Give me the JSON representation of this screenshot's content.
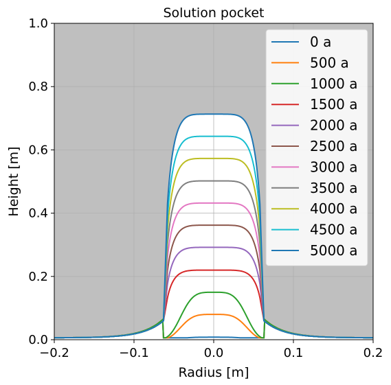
{
  "chart_data": {
    "type": "area",
    "title": "Solution pocket",
    "xlabel": "Radius [m]",
    "ylabel": "Height [m]",
    "xlim": [
      -0.2,
      0.2
    ],
    "ylim": [
      0.0,
      1.0
    ],
    "xticks": [
      -0.2,
      -0.1,
      0.0,
      0.1,
      0.2
    ],
    "xtick_labels": [
      "−0.2",
      "−0.1",
      "0.0",
      "0.1",
      "0.2"
    ],
    "yticks": [
      0.0,
      0.2,
      0.4,
      0.6,
      0.8,
      1.0
    ],
    "ytick_labels": [
      "0.0",
      "0.2",
      "0.4",
      "0.6",
      "0.8",
      "1.0"
    ],
    "grid": true,
    "background_color": "#bfbfbf",
    "pocket_fill_color": "#ffffff",
    "legend_position": "top-right",
    "series": [
      {
        "name": "0 a",
        "color": "#1f77b4",
        "peak": 0.008
      },
      {
        "name": "500 a",
        "color": "#ff7f0e",
        "peak": 0.08
      },
      {
        "name": "1000 a",
        "color": "#2ca02c",
        "peak": 0.15
      },
      {
        "name": "1500 a",
        "color": "#d62728",
        "peak": 0.22
      },
      {
        "name": "2000 a",
        "color": "#9467bd",
        "peak": 0.292
      },
      {
        "name": "2500 a",
        "color": "#8c564b",
        "peak": 0.362
      },
      {
        "name": "3000 a",
        "color": "#e377c2",
        "peak": 0.432
      },
      {
        "name": "3500 a",
        "color": "#7f7f7f",
        "peak": 0.502
      },
      {
        "name": "4000 a",
        "color": "#bcbd22",
        "peak": 0.573
      },
      {
        "name": "4500 a",
        "color": "#17becf",
        "peak": 0.643
      },
      {
        "name": "5000 a",
        "color": "#1f77b4",
        "peak": 0.713
      }
    ]
  }
}
